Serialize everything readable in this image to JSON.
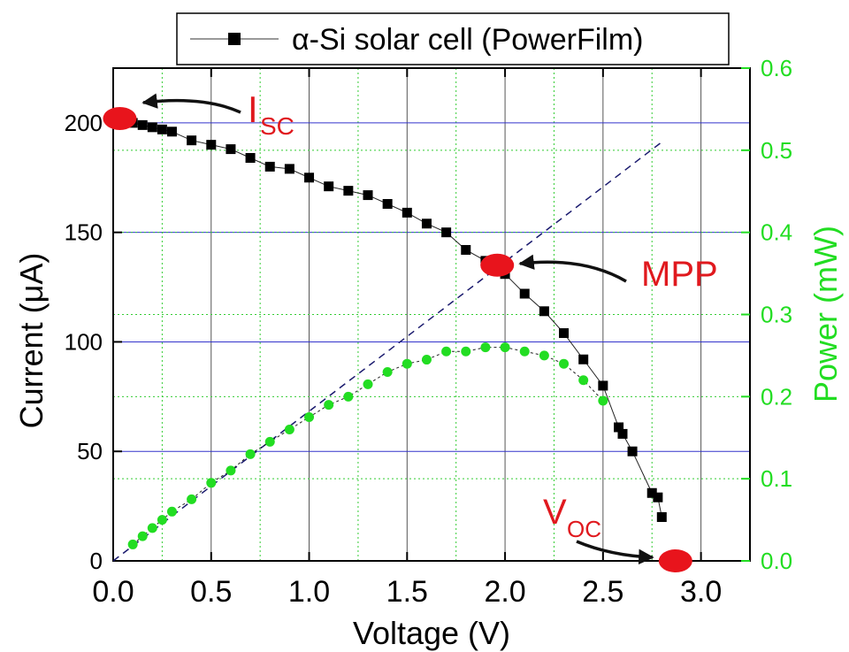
{
  "chart_data": {
    "type": "scatter",
    "x_axis": {
      "label": "Voltage (V)",
      "range": [
        0.0,
        3.25
      ],
      "ticks": [
        0.0,
        0.5,
        1.0,
        1.5,
        2.0,
        2.5,
        3.0
      ],
      "tick_labels": [
        "0.0",
        "0.5",
        "1.0",
        "1.5",
        "2.0",
        "2.5",
        "3.0"
      ]
    },
    "y_axis_left": {
      "label": "Current (μA)",
      "range": [
        0,
        225
      ],
      "ticks": [
        0,
        50,
        100,
        150,
        200
      ],
      "tick_labels": [
        "0",
        "50",
        "100",
        "150",
        "200"
      ],
      "color": "#000000"
    },
    "y_axis_right": {
      "label": "Power (mW)",
      "range": [
        0.0,
        0.6
      ],
      "ticks": [
        0.0,
        0.1,
        0.2,
        0.3,
        0.4,
        0.5,
        0.6
      ],
      "tick_labels": [
        "0.0",
        "0.1",
        "0.2",
        "0.3",
        "0.4",
        "0.5",
        "0.6"
      ],
      "color": "#22dd22"
    },
    "grid": true,
    "legend": {
      "position": "top",
      "entries": [
        "α-Si solar cell (PowerFilm)"
      ]
    },
    "series": [
      {
        "name": "α-Si solar cell (PowerFilm)",
        "axis": "left",
        "marker": "square",
        "color": "#000000",
        "x": [
          0.05,
          0.1,
          0.15,
          0.2,
          0.25,
          0.3,
          0.4,
          0.5,
          0.6,
          0.7,
          0.8,
          0.9,
          1.0,
          1.1,
          1.2,
          1.3,
          1.4,
          1.5,
          1.6,
          1.7,
          1.8,
          1.9,
          2.0,
          2.1,
          2.2,
          2.3,
          2.4,
          2.5,
          2.58,
          2.6,
          2.65,
          2.75,
          2.78,
          2.8
        ],
        "y": [
          200,
          200,
          199,
          198,
          197,
          196,
          192,
          190,
          188,
          184,
          180,
          179,
          175,
          171,
          169,
          167,
          163,
          159,
          154,
          150,
          142,
          137,
          131,
          122,
          114,
          104,
          92,
          80,
          61,
          58,
          50,
          31,
          29,
          20
        ]
      },
      {
        "name": "",
        "axis": "right",
        "marker": "circle",
        "color": "#22dd22",
        "x": [
          0.1,
          0.15,
          0.2,
          0.25,
          0.3,
          0.4,
          0.5,
          0.6,
          0.7,
          0.8,
          0.9,
          1.0,
          1.1,
          1.2,
          1.3,
          1.4,
          1.5,
          1.6,
          1.7,
          1.8,
          1.9,
          2.0,
          2.1,
          2.2,
          2.3,
          2.4,
          2.5
        ],
        "y": [
          0.02,
          0.03,
          0.04,
          0.05,
          0.06,
          0.075,
          0.095,
          0.11,
          0.13,
          0.145,
          0.16,
          0.175,
          0.19,
          0.2,
          0.215,
          0.23,
          0.24,
          0.245,
          0.255,
          0.255,
          0.26,
          0.26,
          0.255,
          0.25,
          0.24,
          0.22,
          0.195
        ]
      }
    ],
    "extrapolation_line": {
      "color": "#1a1a6e",
      "style": "dashed",
      "from": [
        0.0,
        0.0
      ],
      "to": [
        2.8,
        0.51
      ]
    },
    "annotations": [
      {
        "label": "I",
        "subscript": "SC",
        "point": [
          0.02,
          202
        ],
        "color": "#e0191e"
      },
      {
        "label": "MPP",
        "point": [
          1.96,
          135
        ],
        "color": "#e0191e"
      },
      {
        "label": "V",
        "subscript": "OC",
        "point": [
          2.87,
          0
        ],
        "color": "#e0191e"
      }
    ]
  }
}
